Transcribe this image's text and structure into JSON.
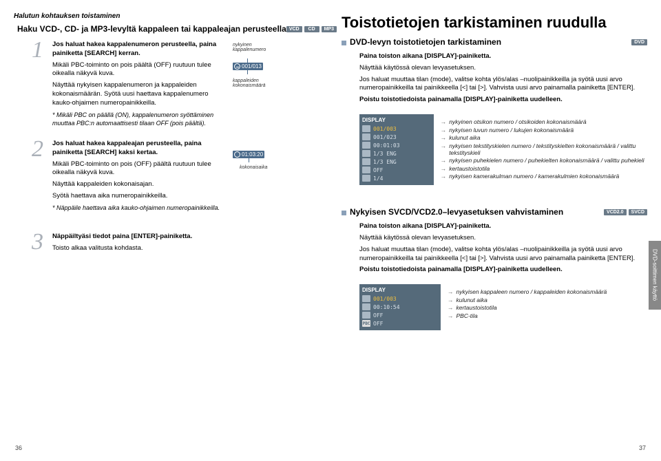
{
  "left": {
    "topTitle": "Halutun kohtauksen toistaminen",
    "sectionTitle": "Haku VCD-, CD- ja MP3-levyltä kappaleen tai kappaleajan perusteella",
    "badges": [
      "VCD",
      "CD",
      "MP3"
    ],
    "step1": {
      "num": "1",
      "line1a": "Jos haluat hakea kappalenumeron perusteella, paina",
      "line1b": "painiketta [SEARCH] kerran.",
      "line2": "Mikäli PBC-toiminto on pois päältä (OFF) ruutuun tulee oikealla näkyvä kuva.",
      "line3": "Näyttää nykyisen kappalenumeron ja kappaleiden kokonaismäärän. Syötä uusi haettava kappalenumero kauko-ohjaimen numeropainikkeilla.",
      "note": "* Mikäli PBC on päällä (ON), kappalenumeron syöttäminen muuttaa PBC:n automaattisesti tilaan OFF (pois päältä)."
    },
    "annot1": {
      "labelTop": "nykyinen\nkappalenumero",
      "boxVal": "001/013",
      "labelBottom": "kappaleiden\nkokonaismäärä"
    },
    "step2": {
      "num": "2",
      "line1a": "Jos haluat hakea kappaleajan perusteella, paina",
      "line1b": "painiketta [SEARCH] kaksi kertaa.",
      "line2": "Mikäli PBC-toiminto on pois (OFF) päältä ruutuun tulee oikealla näkyvä kuva.",
      "line3": "Näyttää kappaleiden kokonaisajan.",
      "line4": "Syötä haettava aika numeropainikkeilla.",
      "note": "* Näppäile haettava aika kauko-ohjaimen numeropainikkeilla."
    },
    "annot2": {
      "boxVal": "01:03:20",
      "label": "kokonaisaika"
    },
    "step3": {
      "num": "3",
      "line1": "Näppäiltyäsi tiedot paina [ENTER]-painiketta.",
      "line2": "Toisto alkaa valitusta kohdasta."
    },
    "pageNum": "36"
  },
  "right": {
    "mainTitle": "Toistotietojen tarkistaminen ruudulla",
    "sec1": {
      "title": "DVD-levyn toistotietojen tarkistaminen",
      "badge": "DVD",
      "t1": "Paina toiston aikana [DISPLAY]-painiketta.",
      "t2": "Näyttää käytössä olevan levyasetuksen.",
      "t3": "Jos haluat muuttaa tilan (mode), valitse kohta ylös/alas –nuolipainikkeilla ja syötä uusi arvo numeropainikkeilla tai painikkeella [<] tai [>]. Vahvista uusi arvo painamalla painiketta [ENTER].",
      "t4": "Poistu toistotiedoista painamalla [DISPLAY]-painiketta uudelleen.",
      "display": {
        "hdr": "DISPLAY",
        "rows": [
          {
            "v": "001/003",
            "hi": true,
            "d": "nykyinen otsikon numero / otsikoiden kokonaismäärä"
          },
          {
            "v": "001/023",
            "hi": false,
            "d": "nykyisen luvun numero / lukujen kokonaismäärä"
          },
          {
            "v": "00:01:03",
            "hi": false,
            "d": "kulunut aika"
          },
          {
            "v": "1/3 ENG",
            "hi": false,
            "d": "nykyisen tekstityskielen numero / tekstityskielten kokonaismäärä / valittu tekstityskieli"
          },
          {
            "v": "1/3 ENG",
            "hi": false,
            "d": "nykyisen puhekielen numero / puhekielten kokonaismäärä / valittu puhekieli"
          },
          {
            "v": "OFF",
            "hi": false,
            "d": "kertaustoistotila"
          },
          {
            "v": "1/4",
            "hi": false,
            "d": "nykyisen kamerakulman numero / kamerakulmien kokonaismäärä"
          }
        ]
      }
    },
    "sec2": {
      "title": "Nykyisen SVCD/VCD2.0–levyasetuksen vahvistaminen",
      "badges": [
        "VCD2.0",
        "SVCD"
      ],
      "t1": "Paina toiston aikana [DISPLAY]-painiketta.",
      "t2": "Näyttää käytössä olevan levyasetuksen.",
      "t3": "Jos haluat muuttaa tilan (mode), valitse kohta ylös/alas –nuolipainikkeilla ja syötä uusi arvo numeropainikkeilla tai painikkeella [<] tai [>]. Vahvista uusi arvo painamalla painiketta [ENTER].",
      "t4": "Poistu toistotiedoista painamalla [DISPLAY]-painiketta uudelleen.",
      "display": {
        "hdr": "DISPLAY",
        "rows": [
          {
            "v": "001/003",
            "hi": true,
            "pbc": false,
            "d": "nykyisen kappaleen numero / kappaleiden kokonaismäärä"
          },
          {
            "v": "00:10:54",
            "hi": false,
            "pbc": false,
            "d": "kulunut aika"
          },
          {
            "v": "OFF",
            "hi": false,
            "pbc": false,
            "d": "kertaustoistotila"
          },
          {
            "v": "OFF",
            "hi": false,
            "pbc": true,
            "d": "PBC-tila"
          }
        ]
      }
    },
    "sideTab": "DVD-soittimen käyttö",
    "pageNum": "37"
  }
}
